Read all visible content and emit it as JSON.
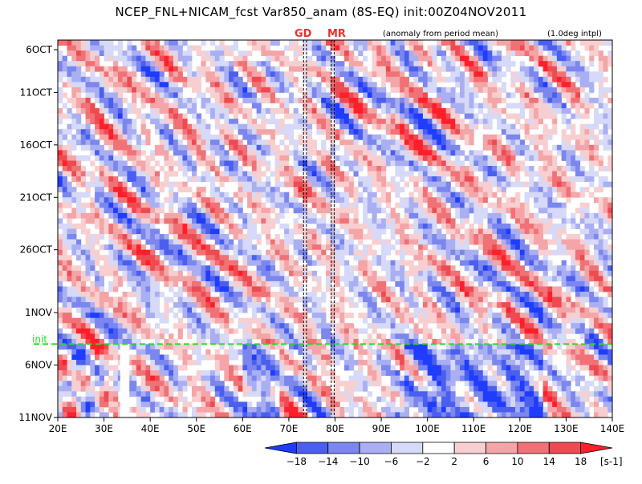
{
  "title": "NCEP_FNL+NICAM_fcst Var850_anam (8S-EQ) init:00Z04NOV2011",
  "subtitle_left": "(anomaly from period mean)",
  "subtitle_right": "(1.0deg intpl)",
  "markers": [
    {
      "label": "GD",
      "lon": 73.5
    },
    {
      "label": "MR",
      "lon": 79.5
    }
  ],
  "init_label": "init",
  "colors": {
    "init_line": "#22dd22",
    "marker_label": "#e8322c",
    "neg_strong": "#1f3cff",
    "pos_strong": "#ff1f2a"
  },
  "chart_data": {
    "type": "heatmap",
    "title": "NCEP_FNL+NICAM_fcst Var850_anam (8S-EQ) init:00Z04NOV2011",
    "xlabel": "",
    "ylabel": "",
    "x_ticks": [
      "20E",
      "30E",
      "40E",
      "50E",
      "60E",
      "70E",
      "80E",
      "90E",
      "100E",
      "110E",
      "120E",
      "130E",
      "140E"
    ],
    "x_values": [
      20,
      30,
      40,
      50,
      60,
      70,
      80,
      90,
      100,
      110,
      120,
      130,
      140
    ],
    "xlim": [
      20,
      140
    ],
    "y_ticks": [
      "6OCT",
      "11OCT",
      "16OCT",
      "21OCT",
      "26OCT",
      "1NOV",
      "6NOV",
      "11NOV"
    ],
    "y_values": [
      0,
      5,
      10,
      15,
      20,
      26,
      31,
      36
    ],
    "ylim": [
      0,
      36
    ],
    "init_day": 29,
    "missing_band_lon": [
      33.5,
      35.5
    ],
    "missing_band_from_day": 29,
    "colorbar": {
      "levels": [
        -18,
        -14,
        -10,
        -6,
        -2,
        2,
        6,
        10,
        14,
        18
      ],
      "level_labels": [
        "−18",
        "−14",
        "−10",
        "−6",
        "−2",
        "2",
        "6",
        "10",
        "14",
        "18"
      ],
      "colors": [
        "#1f3cff",
        "#4a5ff0",
        "#7b86ee",
        "#a9aff2",
        "#d6d9f7",
        "#ffffff",
        "#f8cfd0",
        "#f4a5a8",
        "#f07276",
        "#ee4a52",
        "#ff1f2a"
      ],
      "unit": "[s-1]"
    }
  }
}
